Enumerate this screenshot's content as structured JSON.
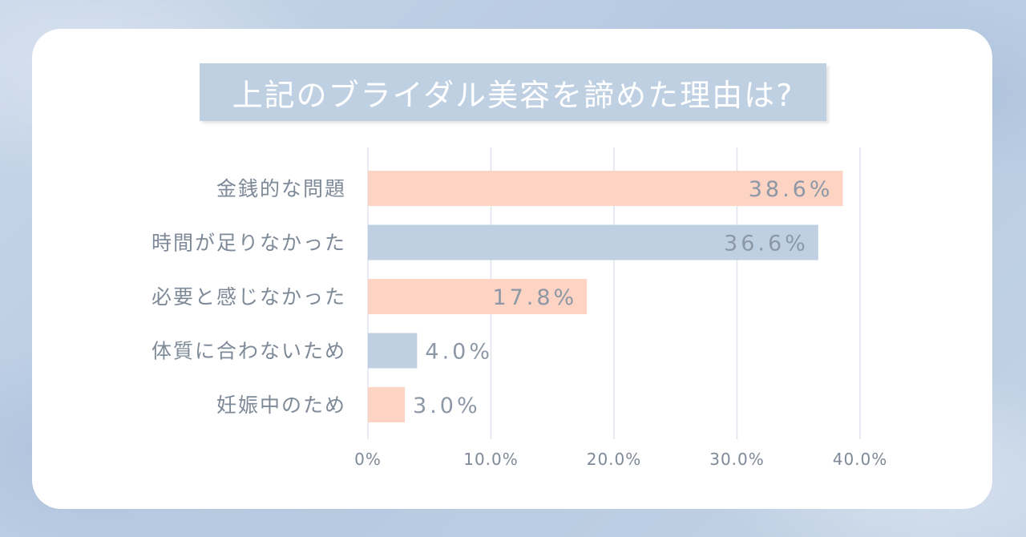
{
  "title": "上記のブライダル美容を諦めた理由は?",
  "colors": {
    "background": "#bccde2",
    "card": "#ffffff",
    "title_band": "#bfd0e3",
    "bar_pink": "#fdd3c4",
    "bar_blue": "#bfd0e3",
    "label_text": "#7e8a98",
    "value_text": "#8c98a6",
    "gridline": "#dfe3ee"
  },
  "chart_data": {
    "type": "bar",
    "orientation": "horizontal",
    "title": "上記のブライダル美容を諦めた理由は?",
    "categories": [
      "金銭的な問題",
      "時間が足りなかった",
      "必要と感じなかった",
      "体質に合わないため",
      "妊娠中のため"
    ],
    "values": [
      38.6,
      36.6,
      17.8,
      4.0,
      3.0
    ],
    "value_labels": [
      "38.6%",
      "36.6%",
      "17.8%",
      "4.0%",
      "3.0%"
    ],
    "bar_colors": [
      "#fdd3c4",
      "#bfd0e3",
      "#fdd3c4",
      "#bfd0e3",
      "#fdd3c4"
    ],
    "xlim": [
      0,
      40
    ],
    "xticks": [
      0,
      10,
      20,
      30,
      40
    ],
    "xtick_labels": [
      "0%",
      "10.0%",
      "20.0%",
      "30.0%",
      "40.0%"
    ],
    "xlabel": "",
    "ylabel": "",
    "grid": true,
    "legend": "none"
  }
}
